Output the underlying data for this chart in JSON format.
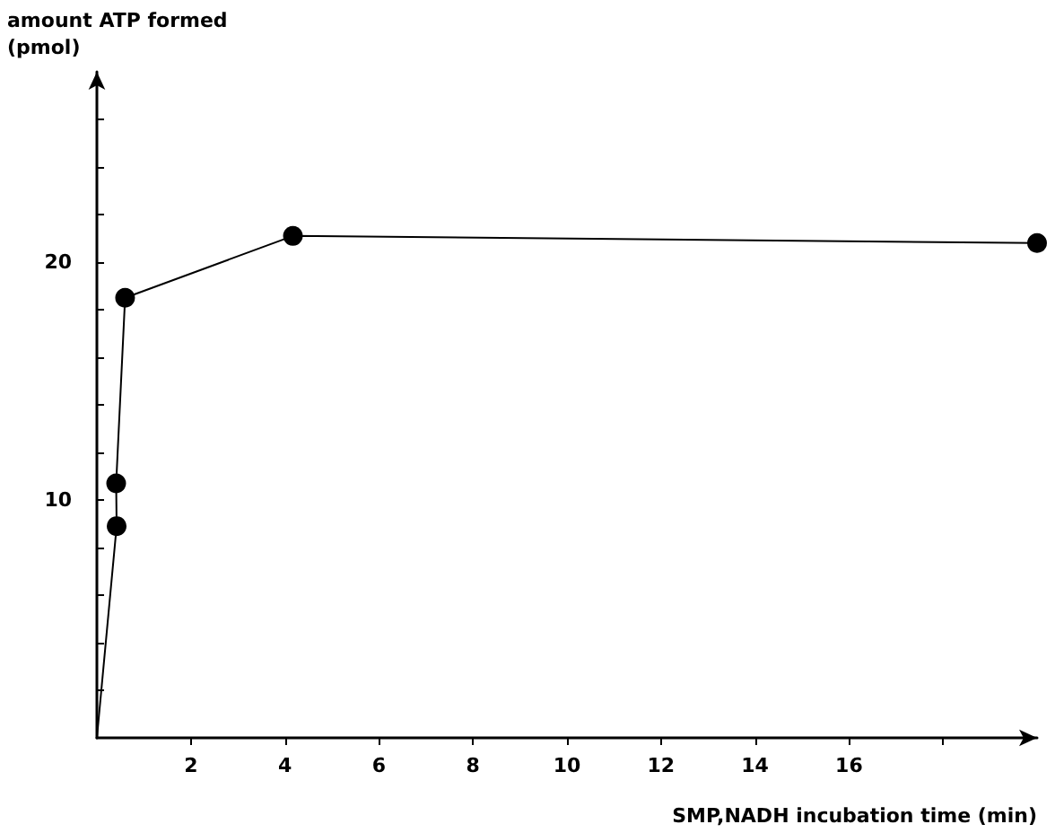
{
  "chart_data": {
    "type": "line",
    "xlabel": "SMP,NADH incubation time (min)",
    "ylabel": "amount ATP formed\n(pmol)",
    "xlim": [
      0,
      20
    ],
    "xticks": [
      {
        "value": 2,
        "label": "2"
      },
      {
        "value": 4,
        "label": "4"
      },
      {
        "value": 6,
        "label": "6"
      },
      {
        "value": 8,
        "label": "8"
      },
      {
        "value": 10,
        "label": "10"
      },
      {
        "value": 12,
        "label": "12"
      },
      {
        "value": 14,
        "label": "14"
      },
      {
        "value": 16,
        "label": "16"
      },
      {
        "value": 18,
        "label": null
      }
    ],
    "ylim": [
      0,
      28
    ],
    "yticks": [
      {
        "value": 2,
        "label": null
      },
      {
        "value": 4,
        "label": null
      },
      {
        "value": 6,
        "label": null
      },
      {
        "value": 8,
        "label": null
      },
      10,
      {
        "value": 12,
        "label": null
      },
      {
        "value": 14,
        "label": null
      },
      {
        "value": 16,
        "label": null
      },
      {
        "value": 18,
        "label": null
      },
      20,
      {
        "value": 22,
        "label": null
      },
      {
        "value": 24,
        "label": null
      },
      {
        "value": 26,
        "label": null
      }
    ],
    "series": [
      {
        "color": "#000000",
        "x": [
          0,
          0.42
        ],
        "values": [
          0,
          8.9
        ]
      },
      {
        "color": "#000000",
        "marker": "circle",
        "x": [
          0.42,
          0.41,
          0.6,
          4.17,
          20
        ],
        "values": [
          8.9,
          10.7,
          18.5,
          21.1,
          20.8
        ]
      }
    ],
    "grid": false,
    "line_style": "solid"
  }
}
